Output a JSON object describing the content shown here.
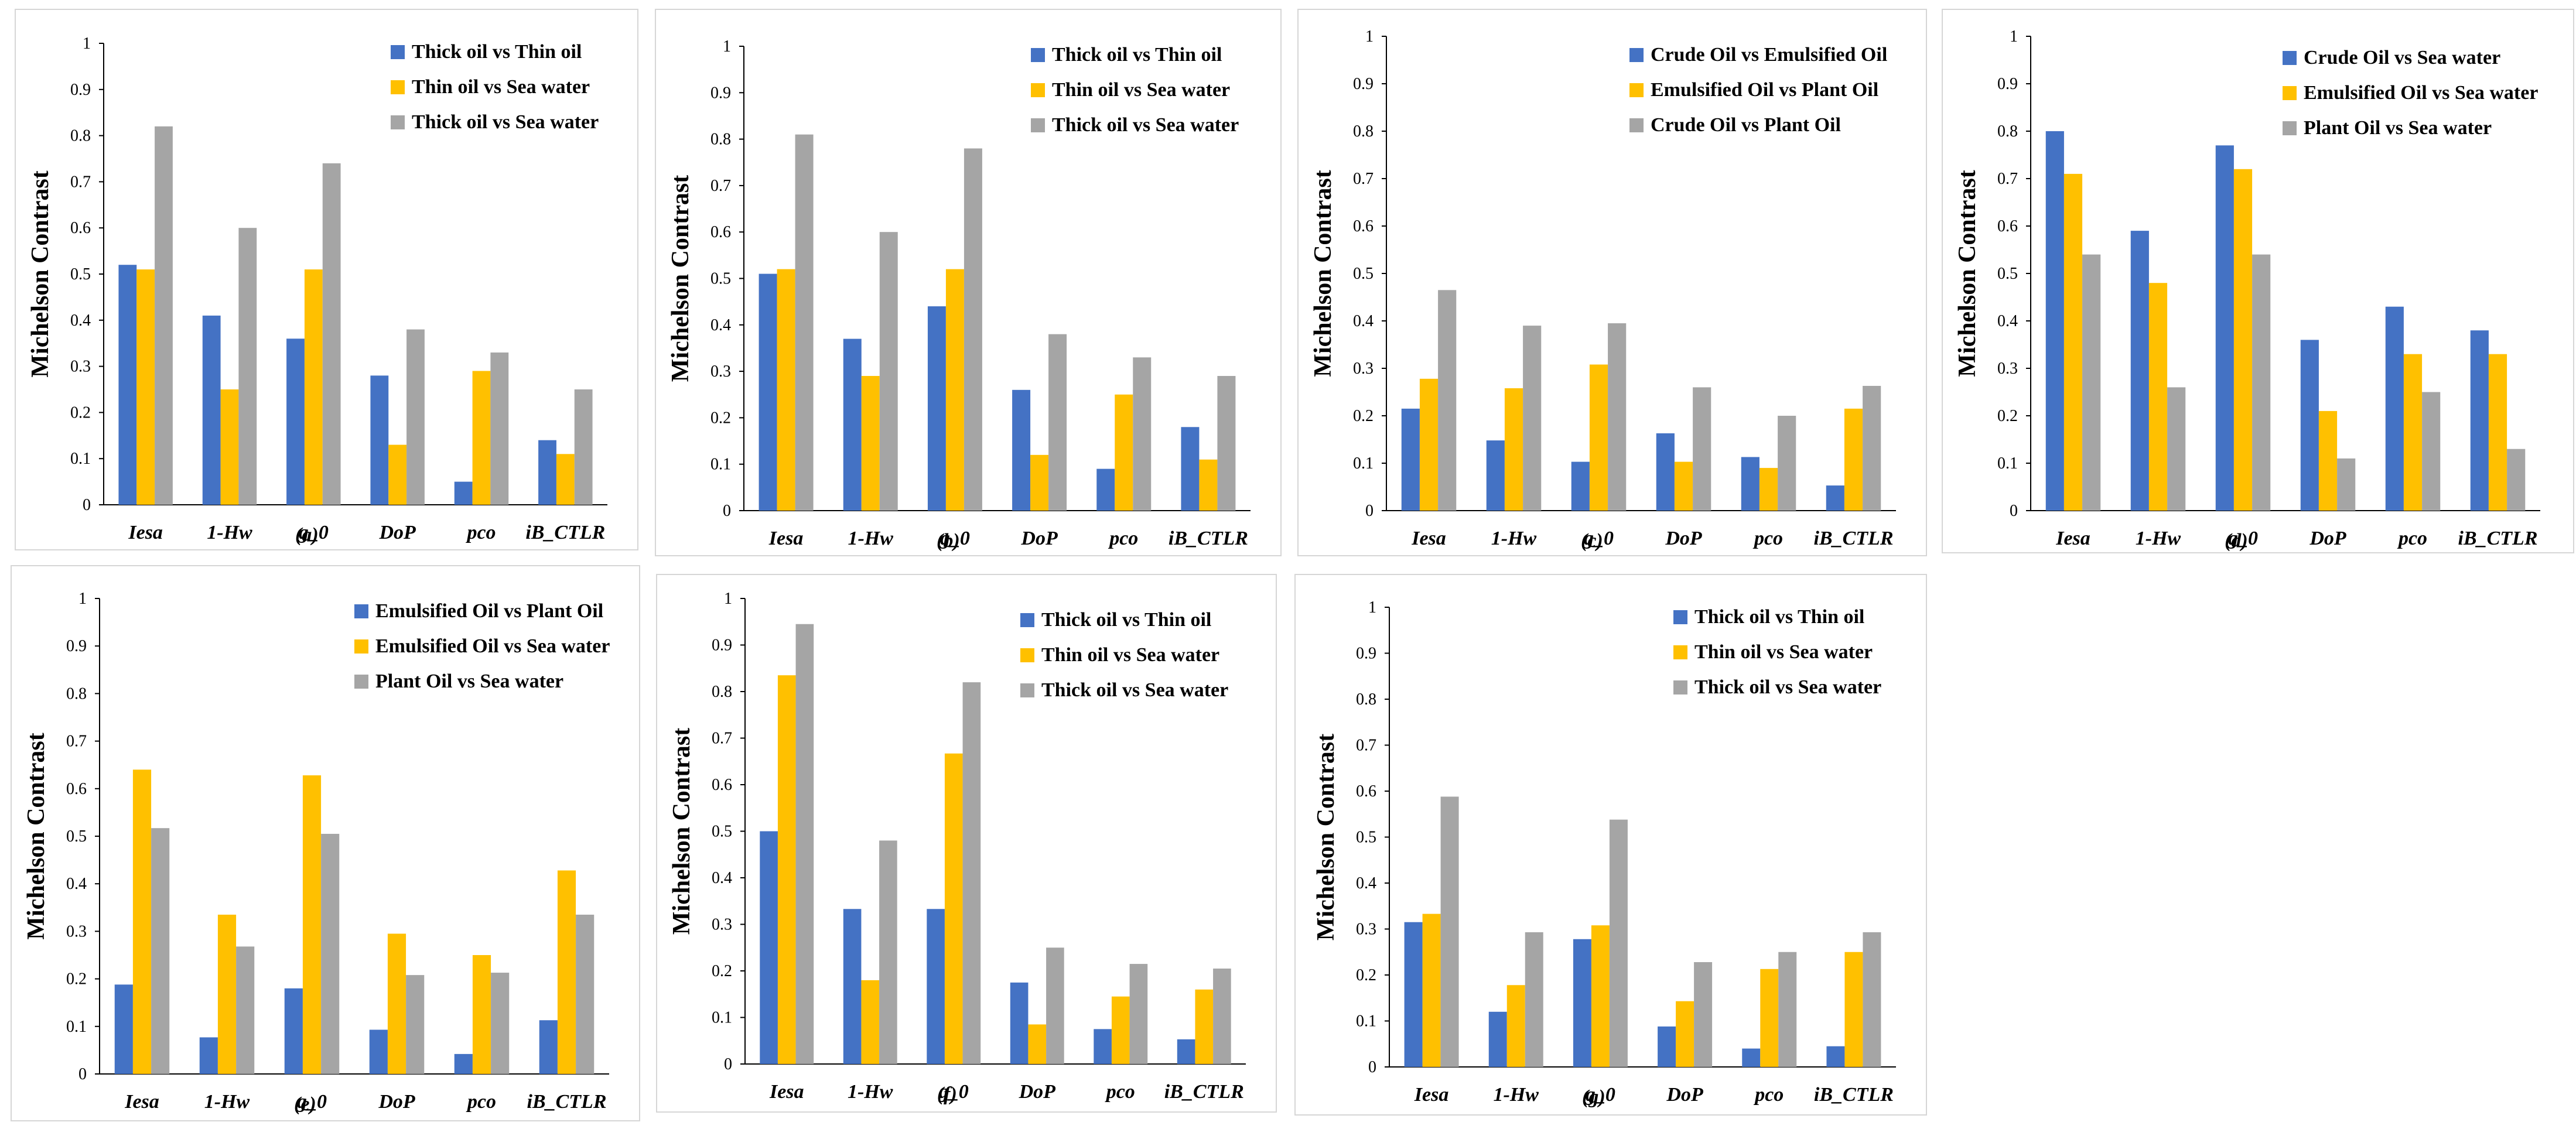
{
  "colors": {
    "series1": "#4472C4",
    "series2": "#FFC000",
    "series3": "#A5A5A5"
  },
  "chart_data": [
    {
      "type": "bar",
      "panel_label": "(a)",
      "ylabel": "Michelson Contrast",
      "ylim": [
        0,
        1
      ],
      "yticks": [
        "0",
        "0.1",
        "0.2",
        "0.3",
        "0.4",
        "0.5",
        "0.6",
        "0.7",
        "0.8",
        "0.9",
        "1"
      ],
      "categories": [
        "Iesa",
        "1-Hw",
        "g_0",
        "DoP",
        "pco",
        "iB_CTLR"
      ],
      "legend_position": "top-right",
      "series": [
        {
          "name": "Thick oil vs Thin oil",
          "values": [
            0.52,
            0.41,
            0.36,
            0.28,
            0.05,
            0.14
          ]
        },
        {
          "name": "Thin oil vs Sea water",
          "values": [
            0.51,
            0.25,
            0.51,
            0.13,
            0.29,
            0.11
          ]
        },
        {
          "name": "Thick oil vs Sea water",
          "values": [
            0.82,
            0.6,
            0.74,
            0.38,
            0.33,
            0.25
          ]
        }
      ]
    },
    {
      "type": "bar",
      "panel_label": "(b)",
      "ylabel": "Michelson Contrast",
      "ylim": [
        0,
        1
      ],
      "yticks": [
        "0",
        "0.1",
        "0.2",
        "0.3",
        "0.4",
        "0.5",
        "0.6",
        "0.7",
        "0.8",
        "0.9",
        "1"
      ],
      "categories": [
        "Iesa",
        "1-Hw",
        "g_0",
        "DoP",
        "pco",
        "iB_CTLR"
      ],
      "legend_position": "top-right",
      "series": [
        {
          "name": "Thick oil vs Thin oil",
          "values": [
            0.51,
            0.37,
            0.44,
            0.26,
            0.09,
            0.18
          ]
        },
        {
          "name": "Thin oil vs Sea water",
          "values": [
            0.52,
            0.29,
            0.52,
            0.12,
            0.25,
            0.11
          ]
        },
        {
          "name": "Thick oil vs Sea water",
          "values": [
            0.81,
            0.6,
            0.78,
            0.38,
            0.33,
            0.29
          ]
        }
      ]
    },
    {
      "type": "bar",
      "panel_label": "(c)",
      "ylabel": "Michelson Contrast",
      "ylim": [
        0,
        1
      ],
      "yticks": [
        "0",
        "0.1",
        "0.2",
        "0.3",
        "0.4",
        "0.5",
        "0.6",
        "0.7",
        "0.8",
        "0.9",
        "1"
      ],
      "categories": [
        "Iesa",
        "1-Hw",
        "g_0",
        "DoP",
        "pco",
        "iB_CTLR"
      ],
      "legend_position": "top-right",
      "series": [
        {
          "name": "Crude Oil vs Emulsified Oil",
          "values": [
            0.215,
            0.148,
            0.103,
            0.163,
            0.113,
            0.053
          ]
        },
        {
          "name": "Emulsified Oil vs Plant Oil",
          "values": [
            0.278,
            0.258,
            0.308,
            0.103,
            0.09,
            0.215
          ]
        },
        {
          "name": "Crude Oil vs Plant Oil",
          "values": [
            0.465,
            0.39,
            0.395,
            0.26,
            0.2,
            0.263
          ]
        }
      ]
    },
    {
      "type": "bar",
      "panel_label": "(d)",
      "ylabel": "Michelson Contrast",
      "ylim": [
        0,
        1
      ],
      "yticks": [
        "0",
        "0.1",
        "0.2",
        "0.3",
        "0.4",
        "0.5",
        "0.6",
        "0.7",
        "0.8",
        "0.9",
        "1"
      ],
      "categories": [
        "Iesa",
        "1-Hw",
        "g_0",
        "DoP",
        "pco",
        "iB_CTLR"
      ],
      "legend_position": "top-right",
      "series": [
        {
          "name": "Crude Oil vs Sea water",
          "values": [
            0.8,
            0.59,
            0.77,
            0.36,
            0.43,
            0.38
          ]
        },
        {
          "name": "Emulsified Oil vs Sea water",
          "values": [
            0.71,
            0.48,
            0.72,
            0.21,
            0.33,
            0.33
          ]
        },
        {
          "name": "Plant Oil vs Sea water",
          "values": [
            0.54,
            0.26,
            0.54,
            0.11,
            0.25,
            0.13
          ]
        }
      ]
    },
    {
      "type": "bar",
      "panel_label": "(e)",
      "ylabel": "Michelson Contrast",
      "ylim": [
        0,
        1
      ],
      "yticks": [
        "0",
        "0.1",
        "0.2",
        "0.3",
        "0.4",
        "0.5",
        "0.6",
        "0.7",
        "0.8",
        "0.9",
        "1"
      ],
      "categories": [
        "Iesa",
        "1-Hw",
        "g_0",
        "DoP",
        "pco",
        "iB_CTLR"
      ],
      "legend_position": "top-right",
      "series": [
        {
          "name": "Emulsified Oil vs Plant Oil",
          "values": [
            0.188,
            0.077,
            0.18,
            0.093,
            0.042,
            0.113
          ]
        },
        {
          "name": "Emulsified Oil vs Sea water",
          "values": [
            0.64,
            0.335,
            0.628,
            0.295,
            0.25,
            0.428
          ]
        },
        {
          "name": "Plant Oil vs Sea water",
          "values": [
            0.517,
            0.268,
            0.505,
            0.208,
            0.213,
            0.335
          ]
        }
      ]
    },
    {
      "type": "bar",
      "panel_label": "(f)",
      "ylabel": "Michelson Contrast",
      "ylim": [
        0,
        1
      ],
      "yticks": [
        "0",
        "0.1",
        "0.2",
        "0.3",
        "0.4",
        "0.5",
        "0.6",
        "0.7",
        "0.8",
        "0.9",
        "1"
      ],
      "categories": [
        "Iesa",
        "1-Hw",
        "g_0",
        "DoP",
        "pco",
        "iB_CTLR"
      ],
      "legend_position": "top-right",
      "series": [
        {
          "name": "Thick oil vs Thin oil",
          "values": [
            0.5,
            0.333,
            0.333,
            0.175,
            0.075,
            0.053
          ]
        },
        {
          "name": "Thin oil vs Sea water",
          "values": [
            0.835,
            0.18,
            0.667,
            0.085,
            0.145,
            0.16
          ]
        },
        {
          "name": "Thick oil vs Sea water",
          "values": [
            0.945,
            0.48,
            0.82,
            0.25,
            0.215,
            0.205
          ]
        }
      ]
    },
    {
      "type": "bar",
      "panel_label": "(g)",
      "ylabel": "Michelson Contrast",
      "ylim": [
        0,
        1
      ],
      "yticks": [
        "0",
        "0.1",
        "0.2",
        "0.3",
        "0.4",
        "0.5",
        "0.6",
        "0.7",
        "0.8",
        "0.9",
        "1"
      ],
      "categories": [
        "Iesa",
        "1-Hw",
        "g_0",
        "DoP",
        "pco",
        "iB_CTLR"
      ],
      "legend_position": "top-right",
      "series": [
        {
          "name": "Thick oil vs Thin oil",
          "values": [
            0.315,
            0.12,
            0.278,
            0.088,
            0.04,
            0.045
          ]
        },
        {
          "name": "Thin oil vs Sea water",
          "values": [
            0.333,
            0.178,
            0.308,
            0.143,
            0.213,
            0.25
          ]
        },
        {
          "name": "Thick oil vs Sea water",
          "values": [
            0.588,
            0.293,
            0.538,
            0.228,
            0.25,
            0.293
          ]
        }
      ]
    }
  ]
}
